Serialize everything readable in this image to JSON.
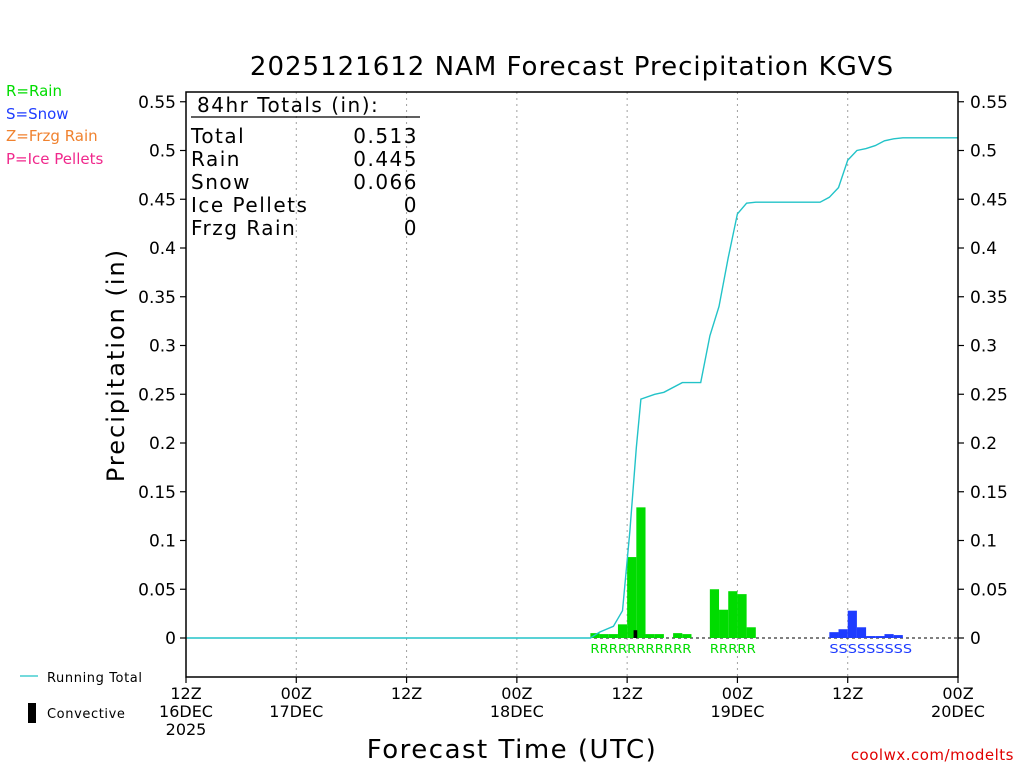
{
  "chart_data": {
    "type": "bar",
    "title": "2025121612 NAM Forecast Precipitation KGVS",
    "xlabel": "Forecast Time (UTC)",
    "ylabel": "Precipitation (in)",
    "ylim": [
      -0.04,
      0.56
    ],
    "yticks": [
      "0",
      "0.05",
      "0.1",
      "0.15",
      "0.2",
      "0.25",
      "0.3",
      "0.35",
      "0.4",
      "0.45",
      "0.5",
      "0.55"
    ],
    "ytick_values": [
      0,
      0.05,
      0.1,
      0.15,
      0.2,
      0.25,
      0.3,
      0.35,
      0.4,
      0.45,
      0.5,
      0.55
    ],
    "xlim_hours": [
      0,
      84
    ],
    "x_ticks": [
      {
        "hour": 0,
        "lines": [
          "12Z",
          "16DEC",
          "2025"
        ]
      },
      {
        "hour": 12,
        "lines": [
          "00Z",
          "17DEC"
        ]
      },
      {
        "hour": 24,
        "lines": [
          "12Z"
        ]
      },
      {
        "hour": 36,
        "lines": [
          "00Z",
          "18DEC"
        ]
      },
      {
        "hour": 48,
        "lines": [
          "12Z"
        ]
      },
      {
        "hour": 60,
        "lines": [
          "00Z",
          "19DEC"
        ]
      },
      {
        "hour": 72,
        "lines": [
          "12Z"
        ]
      },
      {
        "hour": 84,
        "lines": [
          "00Z",
          "20DEC"
        ]
      }
    ],
    "totals_box": {
      "heading": "84hr Totals (in):",
      "rows": [
        {
          "label": "Total",
          "value": "0.513"
        },
        {
          "label": "Rain",
          "value": "0.445"
        },
        {
          "label": "Snow",
          "value": "0.066"
        },
        {
          "label": "Ice Pellets",
          "value": "0"
        },
        {
          "label": "Frzg Rain",
          "value": "0"
        }
      ]
    },
    "type_legend": [
      {
        "text": "R=Rain",
        "color": "#00dc00"
      },
      {
        "text": "S=Snow",
        "color": "#1e3cff"
      },
      {
        "text": "Z=Frzg Rain",
        "color": "#f0822f"
      },
      {
        "text": "P=Ice Pellets",
        "color": "#f0288c"
      }
    ],
    "series_legend": {
      "running_total": "Running Total",
      "convective": "Convective"
    },
    "colors": {
      "rain": "#00dc00",
      "snow": "#1e3cff",
      "running_total": "#22c3c8",
      "convective": "#000000",
      "grid": "#a0a0a0",
      "credit": "#e00000"
    },
    "bar_width_hours": 1,
    "series": [
      {
        "name": "Rain",
        "type_letter": "R",
        "bars": [
          {
            "hour": 44,
            "value": 0.005
          },
          {
            "hour": 45,
            "value": 0.004
          },
          {
            "hour": 46,
            "value": 0.004
          },
          {
            "hour": 47,
            "value": 0.014
          },
          {
            "hour": 48,
            "value": 0.083
          },
          {
            "hour": 49,
            "value": 0.134
          },
          {
            "hour": 50,
            "value": 0.004
          },
          {
            "hour": 51,
            "value": 0.004
          },
          {
            "hour": 53,
            "value": 0.005
          },
          {
            "hour": 54,
            "value": 0.004
          },
          {
            "hour": 57,
            "value": 0.05
          },
          {
            "hour": 58,
            "value": 0.029
          },
          {
            "hour": 59,
            "value": 0.048
          },
          {
            "hour": 60,
            "value": 0.045
          },
          {
            "hour": 61,
            "value": 0.011
          }
        ],
        "label_text": "RRRRRRRRRRR",
        "label_hour_start": 44,
        "label_hour_end": 55
      },
      {
        "name": "Rain (second period)",
        "type_letter": "R",
        "bars": [],
        "label_text": "RRRRR",
        "label_hour_start": 57,
        "label_hour_end": 62
      },
      {
        "name": "Snow",
        "type_letter": "S",
        "bars": [
          {
            "hour": 70,
            "value": 0.006
          },
          {
            "hour": 71,
            "value": 0.009
          },
          {
            "hour": 72,
            "value": 0.028
          },
          {
            "hour": 73,
            "value": 0.011
          },
          {
            "hour": 74,
            "value": 0.002
          },
          {
            "hour": 75,
            "value": 0.002
          },
          {
            "hour": 76,
            "value": 0.004
          },
          {
            "hour": 77,
            "value": 0.003
          }
        ],
        "label_text": "SSSSSSSSS",
        "label_hour_start": 70,
        "label_hour_end": 79
      },
      {
        "name": "Convective",
        "bars": [
          {
            "hour": 48.7,
            "value": 0.008
          }
        ]
      },
      {
        "name": "Running Total",
        "type": "line",
        "points": [
          [
            0,
            0
          ],
          [
            44,
            0
          ],
          [
            45,
            0.006
          ],
          [
            46.5,
            0.012
          ],
          [
            47.5,
            0.028
          ],
          [
            48.3,
            0.11
          ],
          [
            49,
            0.195
          ],
          [
            49.5,
            0.245
          ],
          [
            51,
            0.25
          ],
          [
            52,
            0.252
          ],
          [
            54,
            0.262
          ],
          [
            56,
            0.262
          ],
          [
            57,
            0.31
          ],
          [
            58,
            0.34
          ],
          [
            59,
            0.39
          ],
          [
            60,
            0.435
          ],
          [
            61,
            0.446
          ],
          [
            62,
            0.447
          ],
          [
            63,
            0.447
          ],
          [
            67,
            0.447
          ],
          [
            69,
            0.447
          ],
          [
            70,
            0.452
          ],
          [
            71,
            0.462
          ],
          [
            72,
            0.49
          ],
          [
            73,
            0.5
          ],
          [
            74,
            0.502
          ],
          [
            75,
            0.505
          ],
          [
            76,
            0.51
          ],
          [
            77,
            0.512
          ],
          [
            78,
            0.513
          ],
          [
            84,
            0.513
          ]
        ]
      }
    ]
  },
  "credit": "coolwx.com/modelts"
}
